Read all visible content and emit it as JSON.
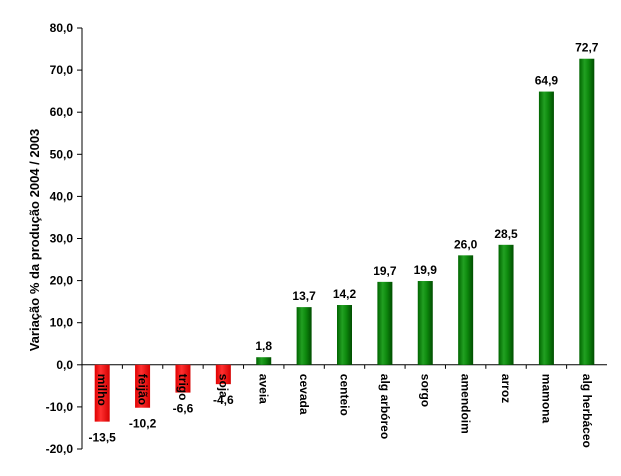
{
  "chart_data": {
    "type": "bar",
    "ylabel": "Variação % da produção 2004 / 2003",
    "xlabel": "",
    "title": "",
    "ylim": [
      -20,
      80
    ],
    "yticks": [
      "80,0",
      "70,0",
      "60,0",
      "50,0",
      "40,0",
      "30,0",
      "20,0",
      "10,0",
      "0,0",
      "-10,0",
      "-20,0"
    ],
    "yticks_values": [
      80,
      70,
      60,
      50,
      40,
      30,
      20,
      10,
      0,
      -10,
      -20
    ],
    "categories": [
      "milho",
      "feijão",
      "trigo",
      "soja",
      "aveia",
      "cevada",
      "centeio",
      "alg arbóreo",
      "sorgo",
      "amendoim",
      "arroz",
      "mamona",
      "alg herbáceo"
    ],
    "values": [
      -13.5,
      -10.2,
      -6.6,
      -4.6,
      1.8,
      13.7,
      14.2,
      19.7,
      19.9,
      26.0,
      28.5,
      64.9,
      72.7
    ],
    "value_labels": [
      "-13,5",
      "-10,2",
      "-6,6",
      "-4,6",
      "1,8",
      "13,7",
      "14,2",
      "19,7",
      "19,9",
      "26,0",
      "28,5",
      "64,9",
      "72,7"
    ],
    "colors": {
      "positive": "#008000",
      "negative": "#ff0000",
      "axis": "#000000"
    },
    "grid": false,
    "legend": "none"
  }
}
